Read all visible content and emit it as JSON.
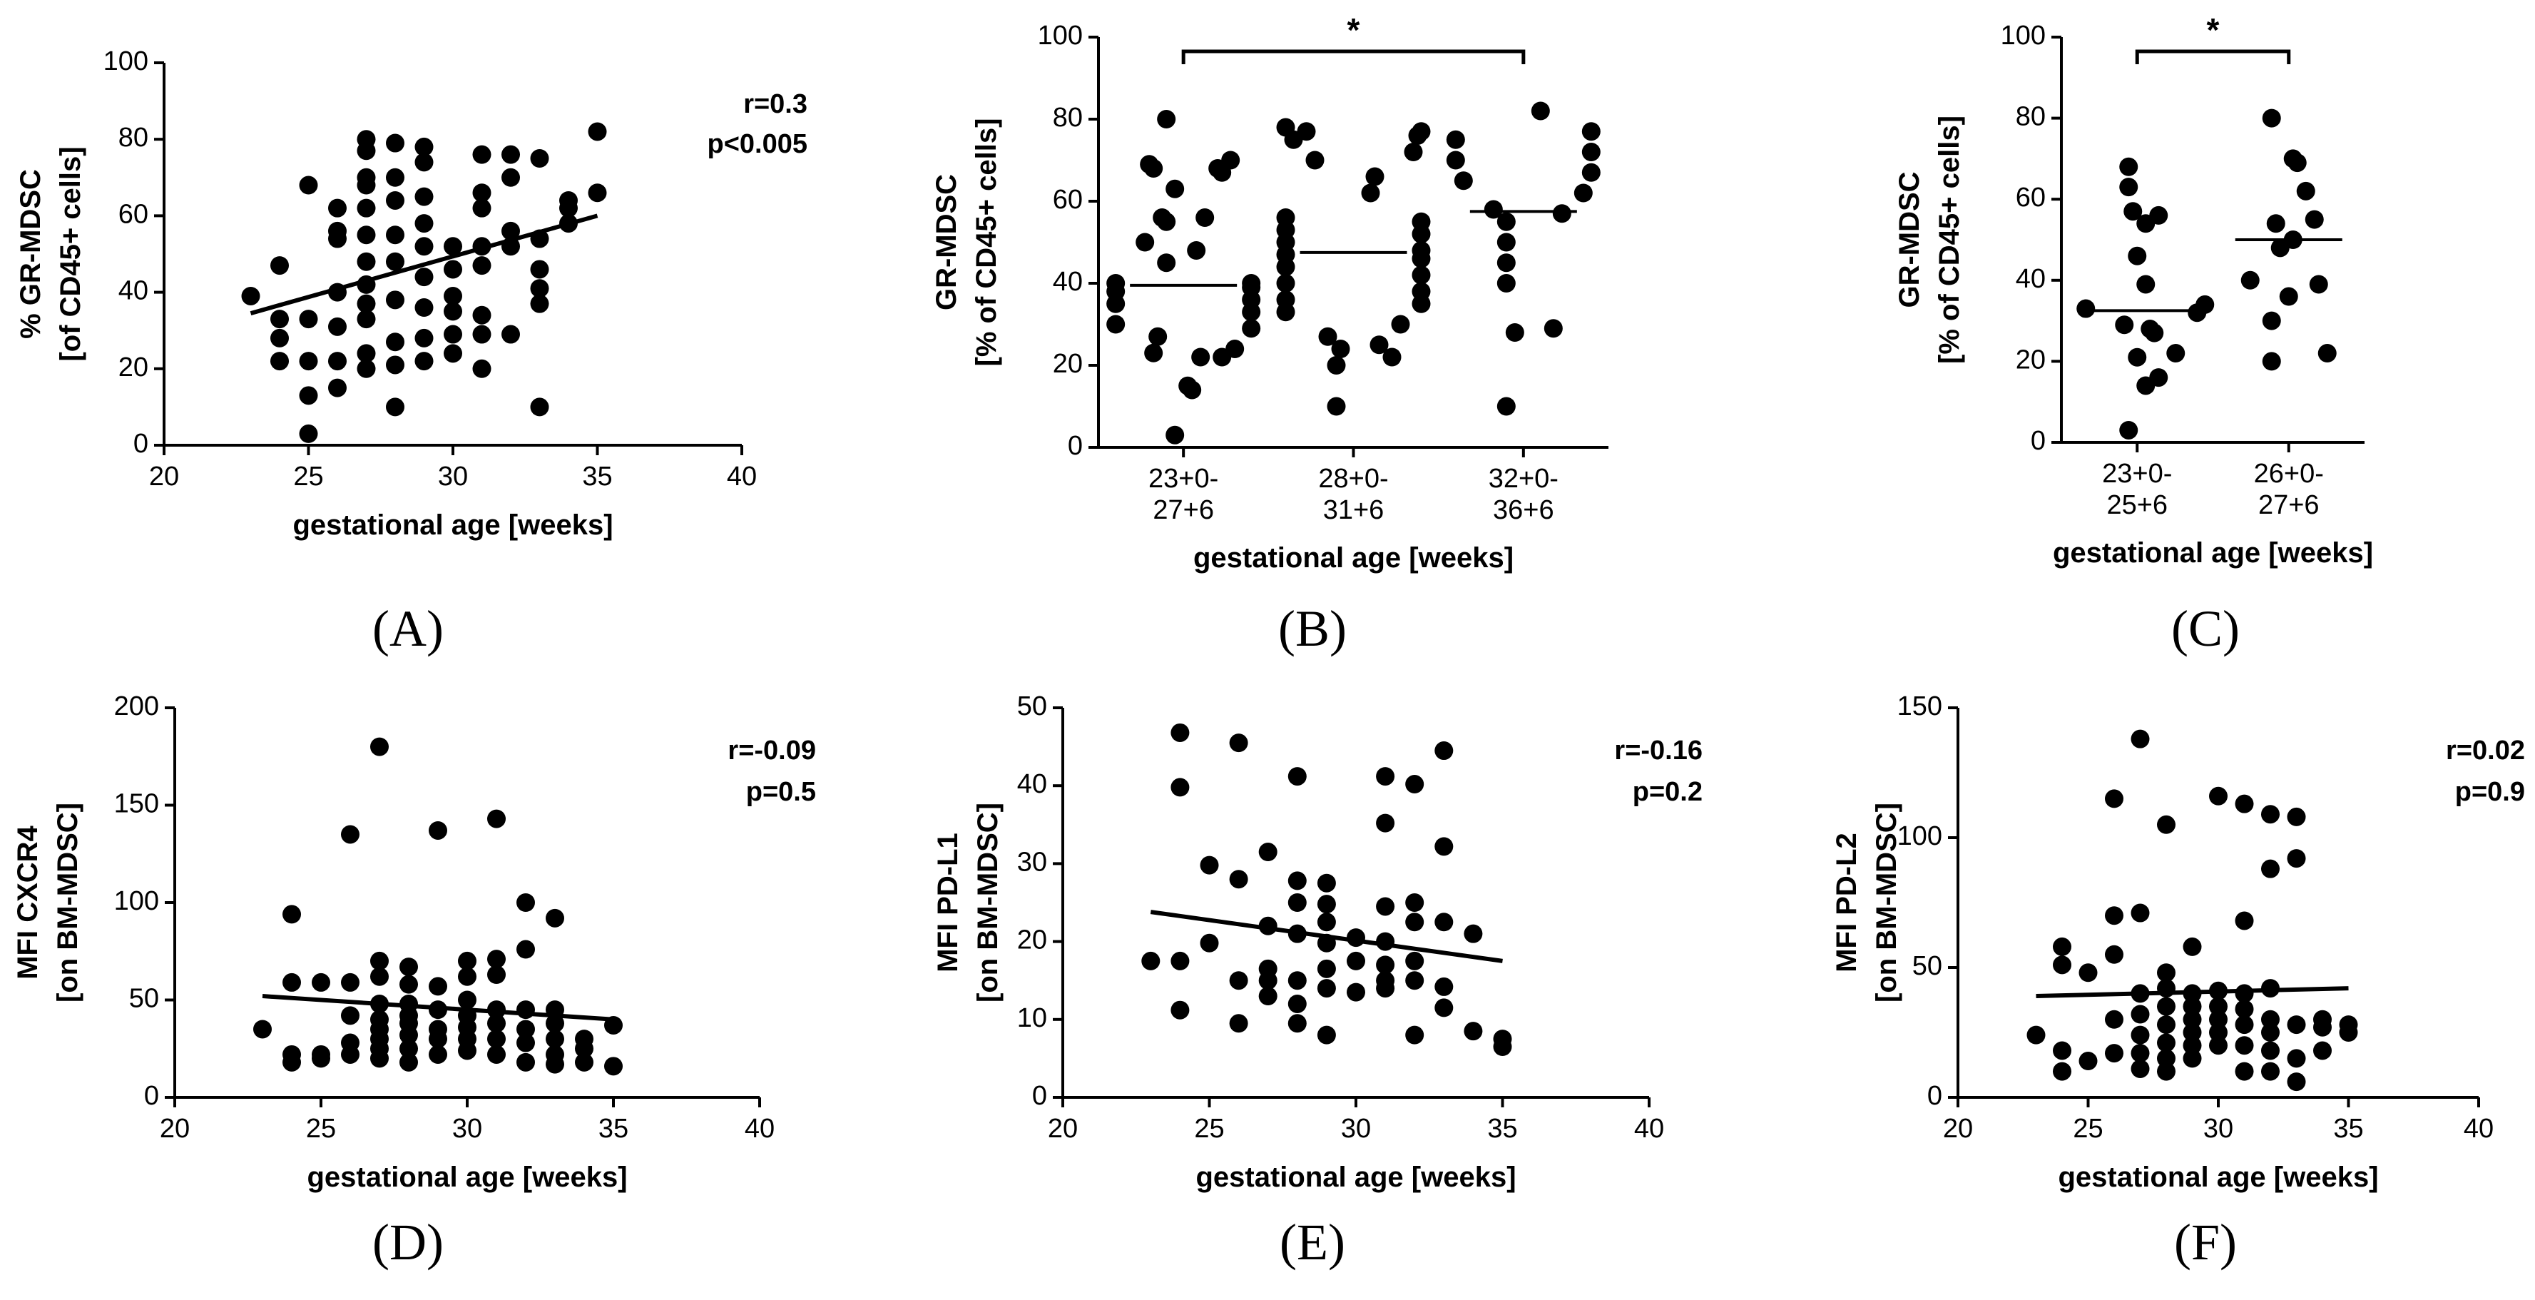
{
  "chart_data": [
    {
      "panel": "(A)",
      "type": "scatter",
      "xlabel": "gestational age [weeks]",
      "ylabel": [
        "% GR-MDSC",
        "[of CD45+ cells]"
      ],
      "xlim": [
        20,
        40
      ],
      "ylim": [
        0,
        100
      ],
      "xticks": [
        20,
        25,
        30,
        35,
        40
      ],
      "yticks": [
        0,
        20,
        40,
        60,
        80,
        100
      ],
      "stats": [
        "r=0.3",
        "p<0.005"
      ],
      "regression": [
        [
          23,
          34.5
        ],
        [
          35,
          60
        ]
      ],
      "points": [
        [
          23,
          39
        ],
        [
          24,
          47
        ],
        [
          24,
          33
        ],
        [
          24,
          28
        ],
        [
          24,
          22
        ],
        [
          25,
          68
        ],
        [
          25,
          33
        ],
        [
          25,
          22
        ],
        [
          25,
          13
        ],
        [
          25,
          3
        ],
        [
          26,
          62
        ],
        [
          26,
          56
        ],
        [
          26,
          54
        ],
        [
          26,
          40
        ],
        [
          26,
          31
        ],
        [
          26,
          22
        ],
        [
          26,
          15
        ],
        [
          27,
          80
        ],
        [
          27,
          77
        ],
        [
          27,
          70
        ],
        [
          27,
          68
        ],
        [
          27,
          62
        ],
        [
          27,
          55
        ],
        [
          27,
          48
        ],
        [
          27,
          42
        ],
        [
          27,
          37
        ],
        [
          27,
          33
        ],
        [
          27,
          24
        ],
        [
          27,
          20
        ],
        [
          28,
          79
        ],
        [
          28,
          70
        ],
        [
          28,
          64
        ],
        [
          28,
          55
        ],
        [
          28,
          48
        ],
        [
          28,
          38
        ],
        [
          28,
          27
        ],
        [
          28,
          21
        ],
        [
          28,
          10
        ],
        [
          29,
          78
        ],
        [
          29,
          74
        ],
        [
          29,
          65
        ],
        [
          29,
          58
        ],
        [
          29,
          52
        ],
        [
          29,
          44
        ],
        [
          29,
          36
        ],
        [
          29,
          28
        ],
        [
          29,
          22
        ],
        [
          30,
          52
        ],
        [
          30,
          46
        ],
        [
          30,
          39
        ],
        [
          30,
          35
        ],
        [
          30,
          29
        ],
        [
          30,
          24
        ],
        [
          31,
          76
        ],
        [
          31,
          66
        ],
        [
          31,
          62
        ],
        [
          31,
          52
        ],
        [
          31,
          47
        ],
        [
          31,
          34
        ],
        [
          31,
          29
        ],
        [
          31,
          20
        ],
        [
          32,
          76
        ],
        [
          32,
          70
        ],
        [
          32,
          56
        ],
        [
          32,
          52
        ],
        [
          32,
          29
        ],
        [
          33,
          75
        ],
        [
          33,
          54
        ],
        [
          33,
          46
        ],
        [
          33,
          41
        ],
        [
          33,
          37
        ],
        [
          33,
          10
        ],
        [
          34,
          64
        ],
        [
          34,
          62
        ],
        [
          34,
          58
        ],
        [
          35,
          82
        ],
        [
          35,
          66
        ]
      ]
    },
    {
      "panel": "(B)",
      "type": "dot",
      "xlabel": "gestational age [weeks]",
      "ylabel": [
        "GR-MDSC",
        "[% of CD45+ cells]"
      ],
      "ylim": [
        0,
        100
      ],
      "yticks": [
        0,
        20,
        40,
        60,
        80,
        100
      ],
      "categories": [
        [
          "23+0-",
          "27+6"
        ],
        [
          "28+0-",
          "31+6"
        ],
        [
          "32+0-",
          "36+6"
        ]
      ],
      "medians": [
        39.5,
        47.5,
        57.5
      ],
      "significance": {
        "between": [
          0,
          2
        ],
        "label": "*"
      },
      "groups": [
        [
          80,
          70,
          69,
          68,
          68,
          67,
          63,
          56,
          56,
          55,
          50,
          48,
          45,
          40,
          40,
          39,
          38,
          36,
          35,
          33,
          30,
          29,
          27,
          24,
          23,
          22,
          22,
          15,
          14,
          3
        ],
        [
          78,
          77,
          77,
          76,
          75,
          72,
          70,
          66,
          62,
          56,
          55,
          53,
          52,
          50,
          48,
          47,
          46,
          44,
          42,
          40,
          38,
          36,
          35,
          33,
          30,
          27,
          25,
          24,
          22,
          20,
          10
        ],
        [
          82,
          77,
          75,
          72,
          70,
          67,
          65,
          62,
          58,
          57,
          55,
          50,
          45,
          40,
          29,
          28,
          10
        ]
      ]
    },
    {
      "panel": "(C)",
      "type": "dot",
      "xlabel": "gestational age [weeks]",
      "ylabel": [
        "GR-MDSC",
        "[% of CD45+ cells]"
      ],
      "ylim": [
        0,
        100
      ],
      "yticks": [
        0,
        20,
        40,
        60,
        80,
        100
      ],
      "categories": [
        [
          "23+0-",
          "25+6"
        ],
        [
          "26+0-",
          "27+6"
        ]
      ],
      "medians": [
        32.5,
        50
      ],
      "significance": {
        "between": [
          0,
          1
        ],
        "label": "*"
      },
      "groups": [
        [
          68,
          63,
          57,
          56,
          54,
          46,
          39,
          34,
          33,
          32,
          29,
          28,
          27,
          22,
          21,
          16,
          14,
          3
        ],
        [
          80,
          70,
          69,
          62,
          55,
          54,
          50,
          48,
          40,
          39,
          36,
          30,
          22,
          20
        ]
      ]
    },
    {
      "panel": "(D)",
      "type": "scatter",
      "xlabel": "gestational age [weeks]",
      "ylabel": [
        "MFI CXCR4",
        "[on BM-MDSC]"
      ],
      "xlim": [
        20,
        40
      ],
      "ylim": [
        0,
        200
      ],
      "xticks": [
        20,
        25,
        30,
        35,
        40
      ],
      "yticks": [
        0,
        50,
        100,
        150,
        200
      ],
      "stats": [
        "r=-0.09",
        "p=0.5"
      ],
      "regression": [
        [
          23,
          52
        ],
        [
          35,
          40
        ]
      ],
      "points": [
        [
          23,
          35
        ],
        [
          24,
          94
        ],
        [
          24,
          59
        ],
        [
          24,
          22
        ],
        [
          24,
          18
        ],
        [
          25,
          59
        ],
        [
          25,
          22
        ],
        [
          25,
          20
        ],
        [
          26,
          135
        ],
        [
          26,
          59
        ],
        [
          26,
          42
        ],
        [
          26,
          28
        ],
        [
          26,
          22
        ],
        [
          27,
          180
        ],
        [
          27,
          70
        ],
        [
          27,
          62
        ],
        [
          27,
          48
        ],
        [
          27,
          40
        ],
        [
          27,
          35
        ],
        [
          27,
          30
        ],
        [
          27,
          25
        ],
        [
          27,
          20
        ],
        [
          28,
          67
        ],
        [
          28,
          58
        ],
        [
          28,
          48
        ],
        [
          28,
          42
        ],
        [
          28,
          38
        ],
        [
          28,
          32
        ],
        [
          28,
          25
        ],
        [
          28,
          18
        ],
        [
          29,
          137
        ],
        [
          29,
          57
        ],
        [
          29,
          45
        ],
        [
          29,
          35
        ],
        [
          29,
          30
        ],
        [
          29,
          22
        ],
        [
          30,
          70
        ],
        [
          30,
          62
        ],
        [
          30,
          50
        ],
        [
          30,
          42
        ],
        [
          30,
          36
        ],
        [
          30,
          30
        ],
        [
          30,
          24
        ],
        [
          31,
          143
        ],
        [
          31,
          71
        ],
        [
          31,
          63
        ],
        [
          31,
          45
        ],
        [
          31,
          38
        ],
        [
          31,
          30
        ],
        [
          31,
          22
        ],
        [
          32,
          100
        ],
        [
          32,
          76
        ],
        [
          32,
          45
        ],
        [
          32,
          35
        ],
        [
          32,
          28
        ],
        [
          32,
          18
        ],
        [
          33,
          92
        ],
        [
          33,
          45
        ],
        [
          33,
          38
        ],
        [
          33,
          30
        ],
        [
          33,
          22
        ],
        [
          33,
          17
        ],
        [
          34,
          30
        ],
        [
          34,
          25
        ],
        [
          34,
          18
        ],
        [
          35,
          37
        ],
        [
          35,
          16
        ]
      ]
    },
    {
      "panel": "(E)",
      "type": "scatter",
      "xlabel": "gestational age [weeks]",
      "ylabel": [
        "MFI PD-L1",
        "[on BM-MDSC]"
      ],
      "xlim": [
        20,
        40
      ],
      "ylim": [
        0,
        50
      ],
      "xticks": [
        20,
        25,
        30,
        35,
        40
      ],
      "yticks": [
        0,
        10,
        20,
        30,
        40,
        50
      ],
      "stats": [
        "r=-0.16",
        "p=0.2"
      ],
      "regression": [
        [
          23,
          23.8
        ],
        [
          35,
          17.5
        ]
      ],
      "points": [
        [
          23,
          17.5
        ],
        [
          24,
          46.8
        ],
        [
          24,
          39.8
        ],
        [
          24,
          17.5
        ],
        [
          24,
          11.2
        ],
        [
          25,
          29.8
        ],
        [
          25,
          19.8
        ],
        [
          26,
          45.5
        ],
        [
          26,
          28
        ],
        [
          26,
          15
        ],
        [
          26,
          9.5
        ],
        [
          27,
          31.5
        ],
        [
          27,
          22
        ],
        [
          27,
          16.5
        ],
        [
          27,
          15
        ],
        [
          27,
          13
        ],
        [
          28,
          41.2
        ],
        [
          28,
          27.8
        ],
        [
          28,
          25
        ],
        [
          28,
          21
        ],
        [
          28,
          15
        ],
        [
          28,
          12
        ],
        [
          28,
          9.5
        ],
        [
          29,
          27.5
        ],
        [
          29,
          24.8
        ],
        [
          29,
          22.5
        ],
        [
          29,
          19.8
        ],
        [
          29,
          16.5
        ],
        [
          29,
          14
        ],
        [
          29,
          8
        ],
        [
          30,
          20.5
        ],
        [
          30,
          17.5
        ],
        [
          30,
          13.5
        ],
        [
          31,
          41.2
        ],
        [
          31,
          35.2
        ],
        [
          31,
          24.5
        ],
        [
          31,
          20
        ],
        [
          31,
          17
        ],
        [
          31,
          15
        ],
        [
          31,
          14
        ],
        [
          32,
          40.2
        ],
        [
          32,
          25
        ],
        [
          32,
          22.5
        ],
        [
          32,
          17.5
        ],
        [
          32,
          15
        ],
        [
          32,
          8
        ],
        [
          33,
          44.5
        ],
        [
          33,
          32.2
        ],
        [
          33,
          22.5
        ],
        [
          33,
          14.2
        ],
        [
          33,
          11.5
        ],
        [
          34,
          21
        ],
        [
          34,
          8.5
        ],
        [
          35,
          7.5
        ],
        [
          35,
          6.5
        ]
      ]
    },
    {
      "panel": "(F)",
      "type": "scatter",
      "xlabel": "gestational age [weeks]",
      "ylabel": [
        "MFI PD-L2",
        "[on BM-MDSC]"
      ],
      "xlim": [
        20,
        40
      ],
      "ylim": [
        0,
        150
      ],
      "xticks": [
        20,
        25,
        30,
        35,
        40
      ],
      "yticks": [
        0,
        50,
        100,
        150
      ],
      "stats": [
        "r=0.02",
        "p=0.9"
      ],
      "regression": [
        [
          23,
          39
        ],
        [
          35,
          42
        ]
      ],
      "points": [
        [
          23,
          24
        ],
        [
          24,
          58
        ],
        [
          24,
          51
        ],
        [
          24,
          18
        ],
        [
          24,
          10
        ],
        [
          25,
          48
        ],
        [
          25,
          14
        ],
        [
          26,
          115
        ],
        [
          26,
          70
        ],
        [
          26,
          55
        ],
        [
          26,
          30
        ],
        [
          26,
          17
        ],
        [
          27,
          138
        ],
        [
          27,
          71
        ],
        [
          27,
          40
        ],
        [
          27,
          32
        ],
        [
          27,
          24
        ],
        [
          27,
          17
        ],
        [
          27,
          11
        ],
        [
          28,
          105
        ],
        [
          28,
          48
        ],
        [
          28,
          42
        ],
        [
          28,
          35
        ],
        [
          28,
          28
        ],
        [
          28,
          21
        ],
        [
          28,
          15
        ],
        [
          28,
          10
        ],
        [
          29,
          58
        ],
        [
          29,
          40
        ],
        [
          29,
          35
        ],
        [
          29,
          30
        ],
        [
          29,
          25
        ],
        [
          29,
          20
        ],
        [
          29,
          15
        ],
        [
          30,
          116
        ],
        [
          30,
          41
        ],
        [
          30,
          35
        ],
        [
          30,
          30
        ],
        [
          30,
          25
        ],
        [
          30,
          20
        ],
        [
          31,
          113
        ],
        [
          31,
          68
        ],
        [
          31,
          40
        ],
        [
          31,
          34
        ],
        [
          31,
          28
        ],
        [
          31,
          20
        ],
        [
          31,
          10
        ],
        [
          32,
          109
        ],
        [
          32,
          88
        ],
        [
          32,
          42
        ],
        [
          32,
          30
        ],
        [
          32,
          25
        ],
        [
          32,
          18
        ],
        [
          32,
          10
        ],
        [
          33,
          108
        ],
        [
          33,
          92
        ],
        [
          33,
          28
        ],
        [
          33,
          15
        ],
        [
          33,
          6
        ],
        [
          34,
          30
        ],
        [
          34,
          27
        ],
        [
          34,
          18
        ],
        [
          35,
          28
        ],
        [
          35,
          25
        ]
      ]
    }
  ]
}
